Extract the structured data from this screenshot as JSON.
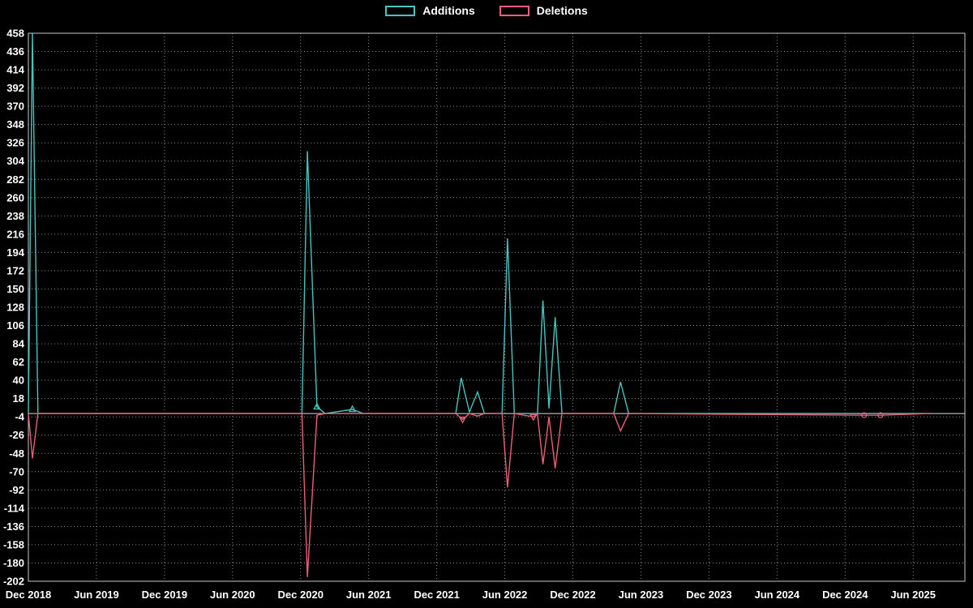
{
  "page": {
    "background": "#000000"
  },
  "chart_data": {
    "type": "line",
    "title": "",
    "xlabel": "",
    "ylabel": "",
    "grid": true,
    "legend_position": "top-center",
    "ylim": [
      -202,
      458
    ],
    "y_tick_step": 22,
    "y_ticks": [
      458,
      436,
      414,
      392,
      370,
      348,
      326,
      304,
      282,
      260,
      238,
      216,
      194,
      172,
      150,
      128,
      106,
      84,
      62,
      40,
      18,
      -4,
      -26,
      -48,
      -70,
      -92,
      -114,
      -136,
      -158,
      -180,
      -202
    ],
    "xlim": [
      2018.92,
      2025.8
    ],
    "x_ticks": [
      {
        "label": "Dec 2018",
        "t": 2018.92
      },
      {
        "label": "Jun 2019",
        "t": 2019.42
      },
      {
        "label": "Dec 2019",
        "t": 2019.92
      },
      {
        "label": "Jun 2020",
        "t": 2020.42
      },
      {
        "label": "Dec 2020",
        "t": 2020.92
      },
      {
        "label": "Jun 2021",
        "t": 2021.42
      },
      {
        "label": "Dec 2021",
        "t": 2021.92
      },
      {
        "label": "Jun 2022",
        "t": 2022.42
      },
      {
        "label": "Dec 2022",
        "t": 2022.92
      },
      {
        "label": "Jun 2023",
        "t": 2023.42
      },
      {
        "label": "Dec 2023",
        "t": 2023.92
      },
      {
        "label": "Jun 2024",
        "t": 2024.42
      },
      {
        "label": "Dec 2024",
        "t": 2024.92
      },
      {
        "label": "Jun 2025",
        "t": 2025.42
      }
    ],
    "series": [
      {
        "name": "Additions",
        "color": "#45c5bf",
        "points": [
          [
            2018.92,
            0
          ],
          [
            2018.95,
            458
          ],
          [
            2018.99,
            0
          ],
          [
            2020.93,
            0
          ],
          [
            2020.97,
            316
          ],
          [
            2021.04,
            8,
            "triangle-up"
          ],
          [
            2021.1,
            0
          ],
          [
            2021.3,
            5,
            "triangle-up"
          ],
          [
            2021.38,
            0
          ],
          [
            2022.06,
            0
          ],
          [
            2022.1,
            43
          ],
          [
            2022.16,
            2
          ],
          [
            2022.22,
            26
          ],
          [
            2022.27,
            0
          ],
          [
            2022.4,
            0
          ],
          [
            2022.44,
            211
          ],
          [
            2022.49,
            0
          ],
          [
            2022.66,
            0
          ],
          [
            2022.7,
            136
          ],
          [
            2022.745,
            6
          ],
          [
            2022.79,
            116
          ],
          [
            2022.84,
            0
          ],
          [
            2023.22,
            0
          ],
          [
            2023.27,
            38
          ],
          [
            2023.33,
            0
          ],
          [
            2025.55,
            0
          ]
        ]
      },
      {
        "name": "Deletions",
        "color": "#ed5f7a",
        "points": [
          [
            2018.92,
            0
          ],
          [
            2018.95,
            -54
          ],
          [
            2018.99,
            0
          ],
          [
            2020.93,
            0
          ],
          [
            2020.97,
            -197
          ],
          [
            2021.04,
            -2
          ],
          [
            2021.1,
            0
          ],
          [
            2022.06,
            0
          ],
          [
            2022.11,
            -7,
            "triangle-down"
          ],
          [
            2022.16,
            0
          ],
          [
            2022.22,
            -3
          ],
          [
            2022.27,
            0
          ],
          [
            2022.4,
            0
          ],
          [
            2022.44,
            -89
          ],
          [
            2022.49,
            0
          ],
          [
            2022.63,
            -4,
            "triangle-down"
          ],
          [
            2022.66,
            -1
          ],
          [
            2022.7,
            -61
          ],
          [
            2022.745,
            -4
          ],
          [
            2022.79,
            -66
          ],
          [
            2022.84,
            0
          ],
          [
            2023.22,
            0
          ],
          [
            2023.27,
            -21
          ],
          [
            2023.33,
            0
          ],
          [
            2025.06,
            -2,
            "circle"
          ],
          [
            2025.18,
            -2,
            "circle"
          ],
          [
            2025.55,
            0
          ]
        ]
      }
    ]
  }
}
